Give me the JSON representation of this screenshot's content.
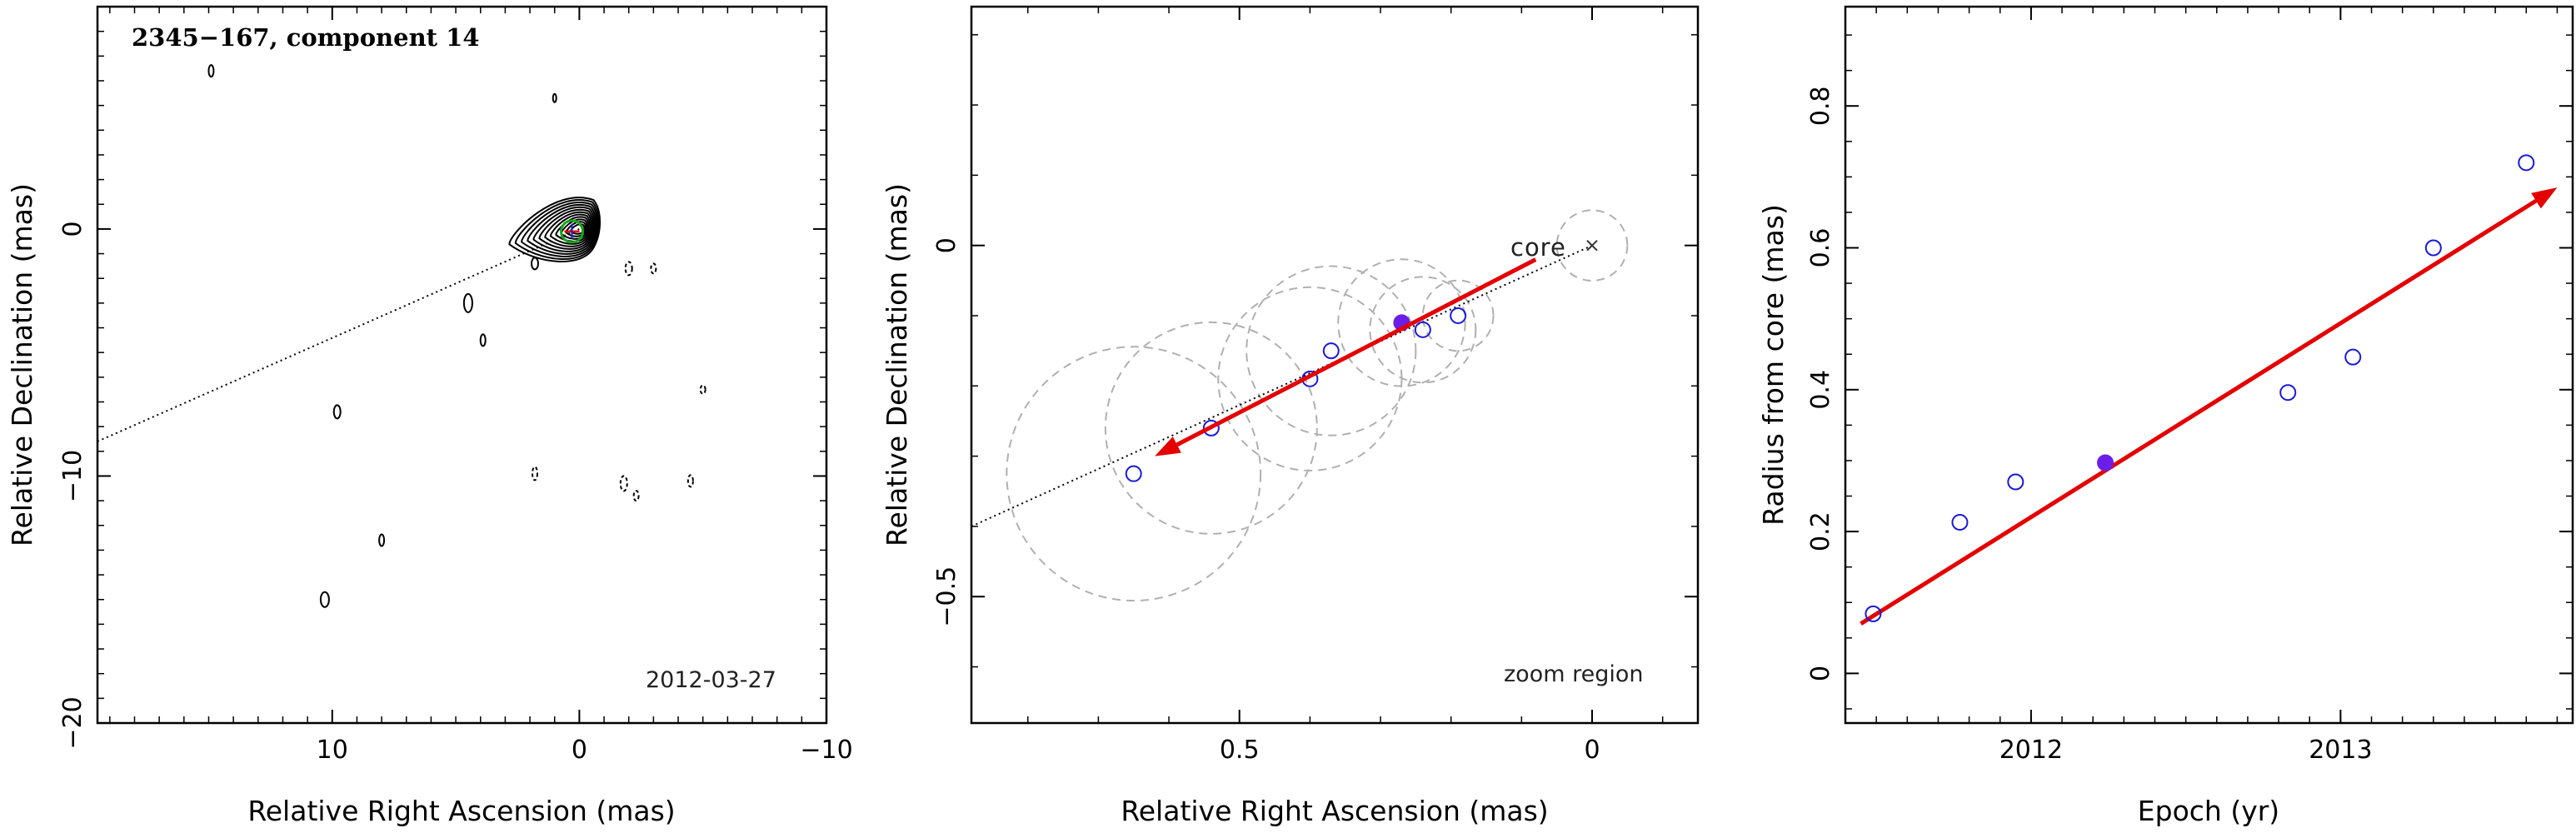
{
  "chart_data": [
    {
      "type": "contour",
      "title": "2345−167, component 14",
      "date_label": "2012-03-27",
      "xlabel": "Relative Right Ascension (mas)",
      "ylabel": "Relative Declination (mas)",
      "xlim": [
        19.5,
        -10
      ],
      "ylim": [
        -20,
        9
      ],
      "xticks": [
        10,
        0,
        -10
      ],
      "xtick_labels": [
        "10",
        "0",
        "−10"
      ],
      "yticks": [
        0,
        -10,
        -20
      ],
      "ytick_labels": [
        "0",
        "−10",
        "−20"
      ],
      "jet_axis": {
        "x": [
          19.5,
          0
        ],
        "y": [
          -8.6,
          0
        ]
      },
      "component_marker": {
        "x": 0.3,
        "y": -0.1
      }
    },
    {
      "type": "scatter",
      "title": "",
      "annotation": "zoom region",
      "core_label": "core",
      "xlabel": "Relative Right Ascension (mas)",
      "ylabel": "Relative Declination (mas)",
      "xlim": [
        0.88,
        -0.15
      ],
      "ylim": [
        -0.68,
        0.34
      ],
      "xticks": [
        0.5,
        0
      ],
      "xtick_labels": [
        "0.5",
        "0"
      ],
      "yticks": [
        0,
        -0.5
      ],
      "ytick_labels": [
        "0",
        "−0.5"
      ],
      "points": [
        {
          "x": 0.19,
          "y": -0.1,
          "r": 0.05,
          "filled": false
        },
        {
          "x": 0.24,
          "y": -0.12,
          "r": 0.075,
          "filled": false
        },
        {
          "x": 0.27,
          "y": -0.11,
          "r": 0.09,
          "filled": true
        },
        {
          "x": 0.37,
          "y": -0.15,
          "r": 0.12,
          "filled": false
        },
        {
          "x": 0.4,
          "y": -0.19,
          "r": 0.13,
          "filled": false
        },
        {
          "x": 0.54,
          "y": -0.26,
          "r": 0.15,
          "filled": false
        },
        {
          "x": 0.65,
          "y": -0.325,
          "r": 0.18,
          "filled": false
        }
      ],
      "core": {
        "x": 0,
        "y": 0,
        "r": 0.05
      },
      "dotted_axis": {
        "x": [
          0.88,
          0
        ],
        "y": [
          -0.4,
          0
        ]
      },
      "arrow": {
        "x_from": 0.08,
        "y_from": -0.02,
        "x_to": 0.62,
        "y_to": -0.3
      }
    },
    {
      "type": "scatter",
      "title": "",
      "xlabel": "Epoch (yr)",
      "ylabel": "Radius from core (mas)",
      "xlim": [
        2011.4,
        2013.75
      ],
      "ylim": [
        -0.07,
        0.94
      ],
      "xticks": [
        2012,
        2013
      ],
      "xtick_labels": [
        "2012",
        "2013"
      ],
      "yticks": [
        0,
        0.2,
        0.4,
        0.6,
        0.8
      ],
      "ytick_labels": [
        "0",
        "0.2",
        "0.4",
        "0.6",
        "0.8"
      ],
      "points": [
        {
          "x": 2011.49,
          "y": 0.084,
          "filled": false
        },
        {
          "x": 2011.77,
          "y": 0.213,
          "filled": false
        },
        {
          "x": 2011.95,
          "y": 0.27,
          "filled": false
        },
        {
          "x": 2012.24,
          "y": 0.297,
          "filled": true
        },
        {
          "x": 2012.83,
          "y": 0.396,
          "filled": false
        },
        {
          "x": 2013.04,
          "y": 0.446,
          "filled": false
        },
        {
          "x": 2013.3,
          "y": 0.6,
          "filled": false
        },
        {
          "x": 2013.6,
          "y": 0.72,
          "filled": false
        }
      ],
      "fit_arrow": {
        "x_from": 2011.45,
        "y_from": 0.07,
        "x_to": 2013.7,
        "y_to": 0.685
      }
    }
  ],
  "colors": {
    "frame": "#000000",
    "contour": "#000000",
    "point": "#1a1adb",
    "filled_point": "#6a1ee8",
    "arrow": "#e50000",
    "circle": "#b0b0b0",
    "component_green": "#1aa31a"
  }
}
